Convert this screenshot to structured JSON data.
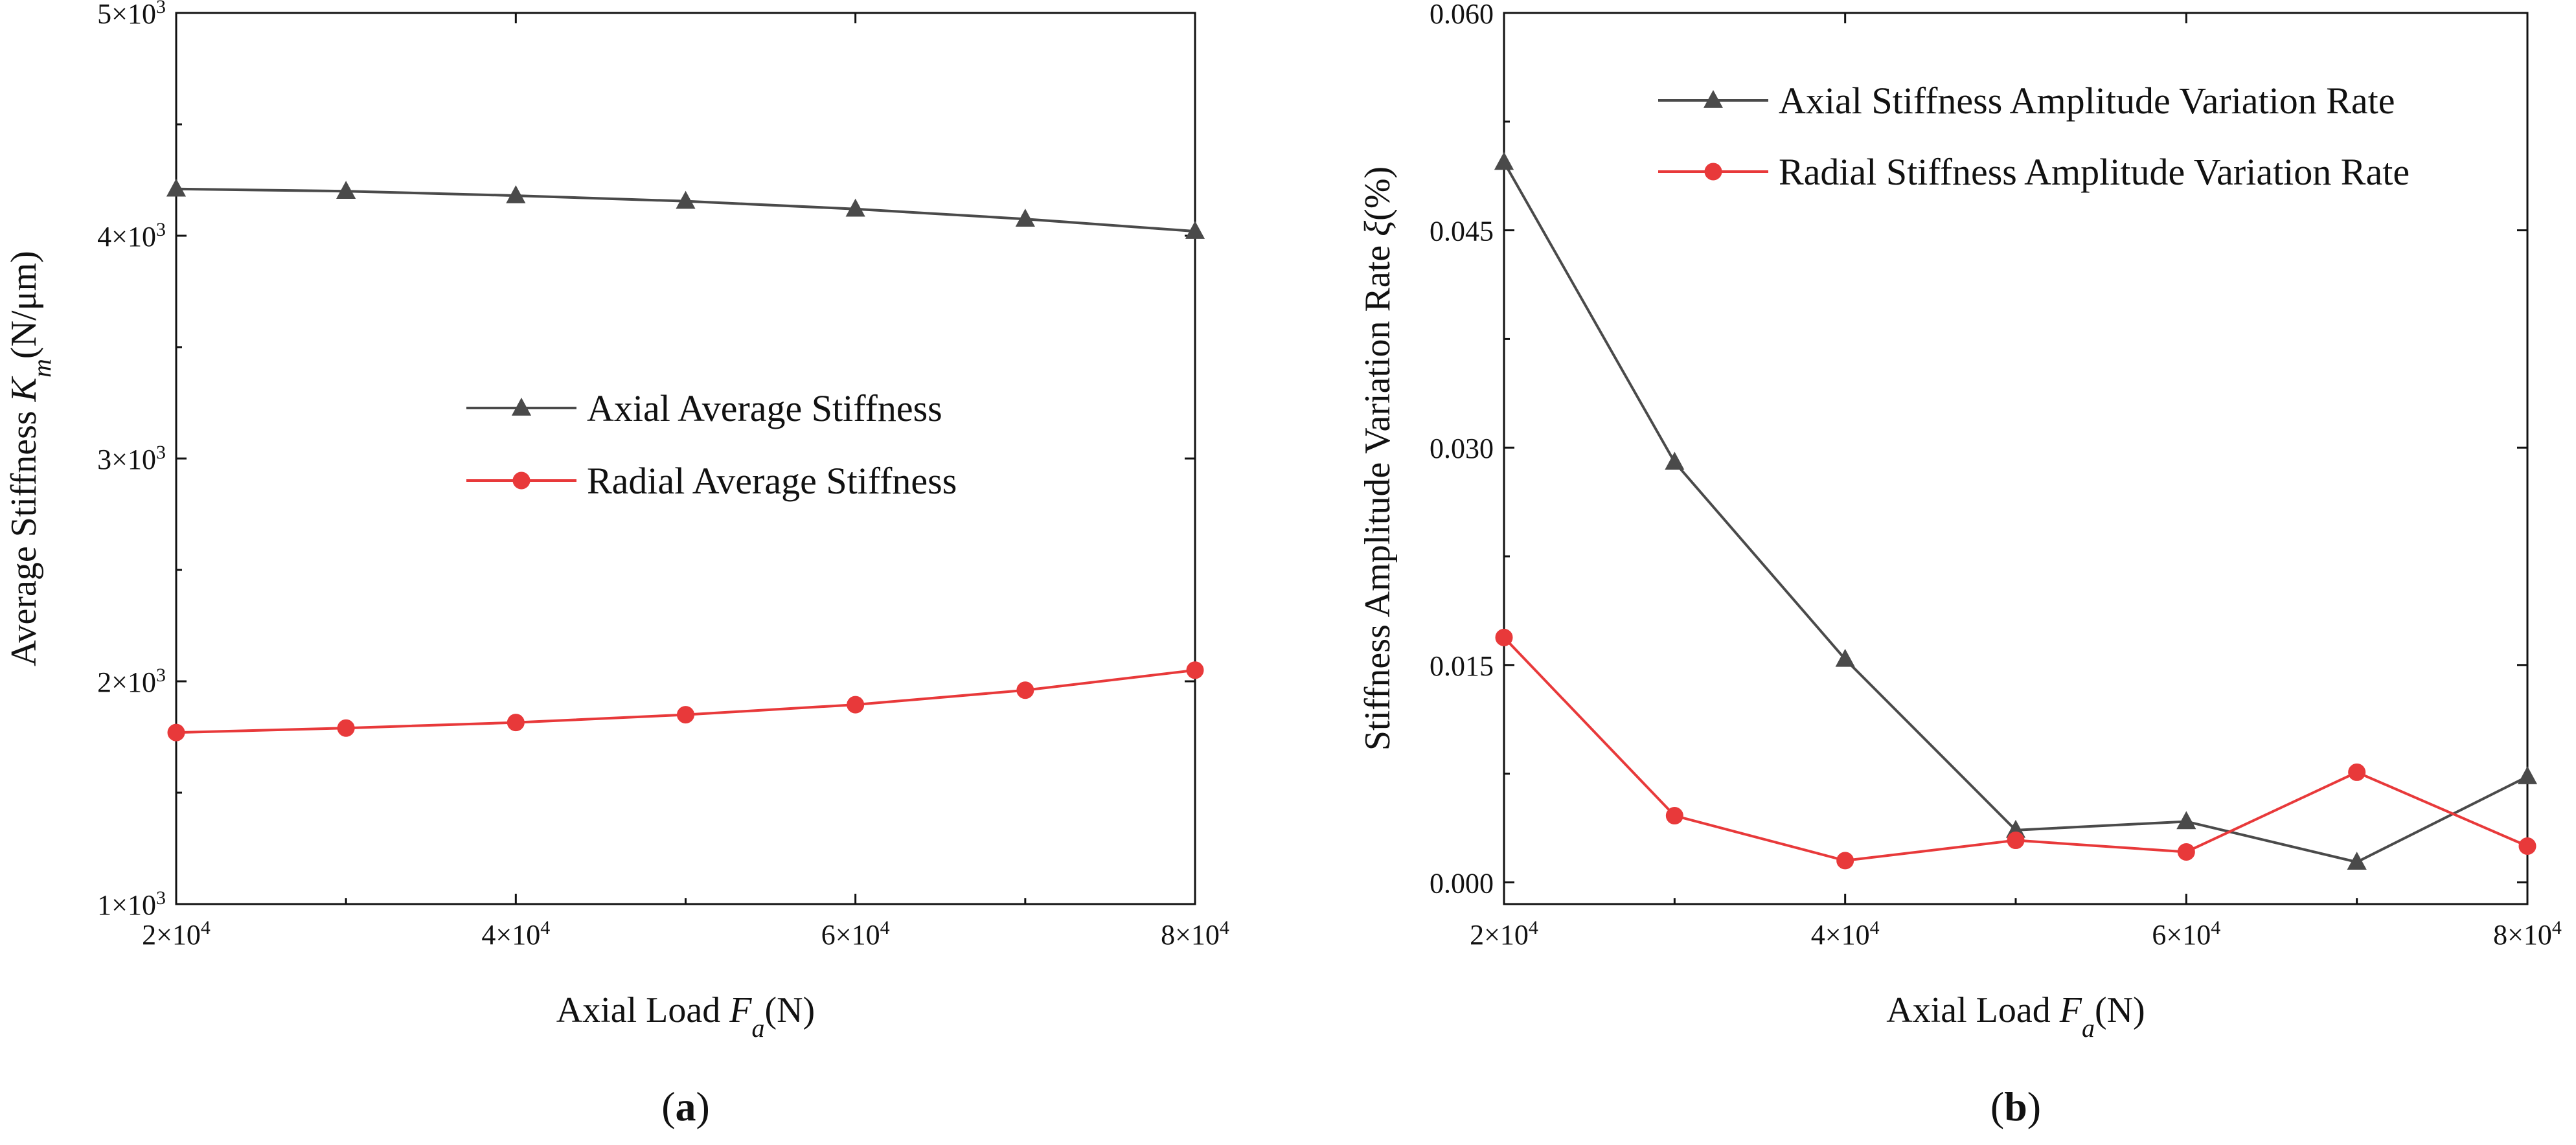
{
  "colors": {
    "axial": "#4a4a4a",
    "radial": "#e8393a",
    "axis": "#111111"
  },
  "chart_data": [
    {
      "id": "a",
      "type": "line",
      "caption": "a",
      "xlabel": {
        "prefix": "Axial Load ",
        "symbol": "F",
        "subscript": "a",
        "suffix": "(N)"
      },
      "ylabel": {
        "prefix": "Average Stiffness ",
        "symbol": "K",
        "subscript": "m",
        "suffix": "(N/μm)"
      },
      "xlim": [
        20000,
        80000
      ],
      "ylim": [
        1000,
        5000
      ],
      "x_ticks": [
        {
          "value": 20000,
          "mantissa": "2×10",
          "exp": "4"
        },
        {
          "value": 40000,
          "mantissa": "4×10",
          "exp": "4"
        },
        {
          "value": 60000,
          "mantissa": "6×10",
          "exp": "4"
        },
        {
          "value": 80000,
          "mantissa": "8×10",
          "exp": "4"
        }
      ],
      "y_ticks": [
        {
          "value": 1000,
          "mantissa": "1×10",
          "exp": "3"
        },
        {
          "value": 2000,
          "mantissa": "2×10",
          "exp": "3"
        },
        {
          "value": 3000,
          "mantissa": "3×10",
          "exp": "3"
        },
        {
          "value": 4000,
          "mantissa": "4×10",
          "exp": "3"
        },
        {
          "value": 5000,
          "mantissa": "5×10",
          "exp": "3"
        }
      ],
      "x": [
        20000,
        30000,
        40000,
        50000,
        60000,
        70000,
        80000
      ],
      "series": [
        {
          "name": "Axial Average Stiffness",
          "marker": "triangle",
          "color": "#4a4a4a",
          "values": [
            4210,
            4200,
            4180,
            4155,
            4120,
            4075,
            4020
          ]
        },
        {
          "name": "Radial Average Stiffness",
          "marker": "circle",
          "color": "#e8393a",
          "values": [
            1770,
            1790,
            1815,
            1850,
            1895,
            1960,
            2050
          ]
        }
      ],
      "legend_position": "center"
    },
    {
      "id": "b",
      "type": "line",
      "caption": "b",
      "xlabel": {
        "prefix": "Axial Load ",
        "symbol": "F",
        "subscript": "a",
        "suffix": "(N)"
      },
      "ylabel": {
        "prefix": "Stiffness Amplitude Variation Rate ",
        "symbol": "ξ",
        "subscript": "",
        "suffix": "(%)"
      },
      "xlim": [
        20000,
        80000
      ],
      "ylim": [
        -0.0015,
        0.06
      ],
      "x_ticks": [
        {
          "value": 20000,
          "mantissa": "2×10",
          "exp": "4"
        },
        {
          "value": 40000,
          "mantissa": "4×10",
          "exp": "4"
        },
        {
          "value": 60000,
          "mantissa": "6×10",
          "exp": "4"
        },
        {
          "value": 80000,
          "mantissa": "8×10",
          "exp": "4"
        }
      ],
      "y_ticks": [
        {
          "value": 0.0,
          "label": "0.000"
        },
        {
          "value": 0.015,
          "label": "0.015"
        },
        {
          "value": 0.03,
          "label": "0.030"
        },
        {
          "value": 0.045,
          "label": "0.045"
        },
        {
          "value": 0.06,
          "label": "0.060"
        }
      ],
      "x": [
        20000,
        30000,
        40000,
        50000,
        60000,
        70000,
        80000
      ],
      "series": [
        {
          "name": "Axial Stiffness Amplitude Variation Rate",
          "marker": "triangle",
          "color": "#4a4a4a",
          "values": [
            0.0497,
            0.029,
            0.0154,
            0.0036,
            0.0042,
            0.0014,
            0.0073
          ]
        },
        {
          "name": "Radial Stiffness Amplitude Variation Rate",
          "marker": "circle",
          "color": "#e8393a",
          "values": [
            0.0169,
            0.0046,
            0.0015,
            0.0029,
            0.0021,
            0.0076,
            0.0025
          ]
        }
      ],
      "legend_position": "top-right"
    }
  ]
}
